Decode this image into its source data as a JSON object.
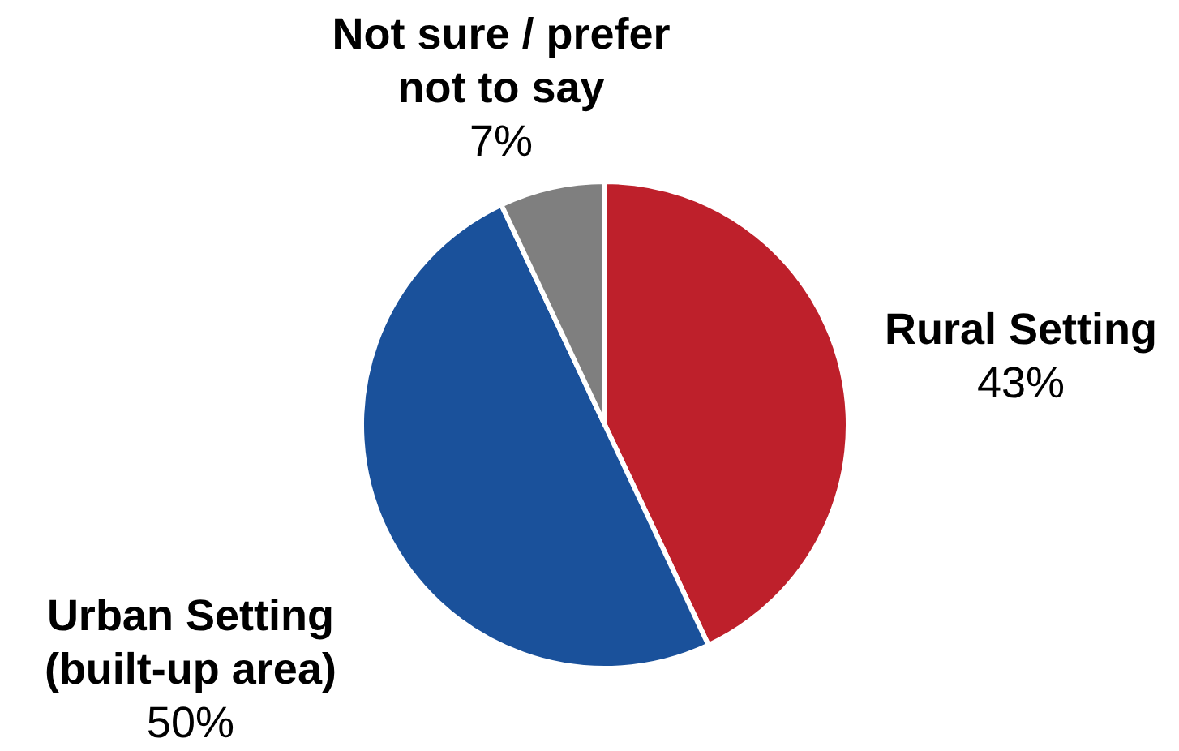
{
  "chart_data": {
    "type": "pie",
    "categories": [
      "Rural Setting",
      "Urban Setting (built-up area)",
      "Not sure / prefer not to say"
    ],
    "values": [
      43,
      50,
      7
    ],
    "colors": [
      "#be202b",
      "#1a519b",
      "#7f7f7f"
    ],
    "value_labels": [
      "43%",
      "50%",
      "7%"
    ]
  }
}
